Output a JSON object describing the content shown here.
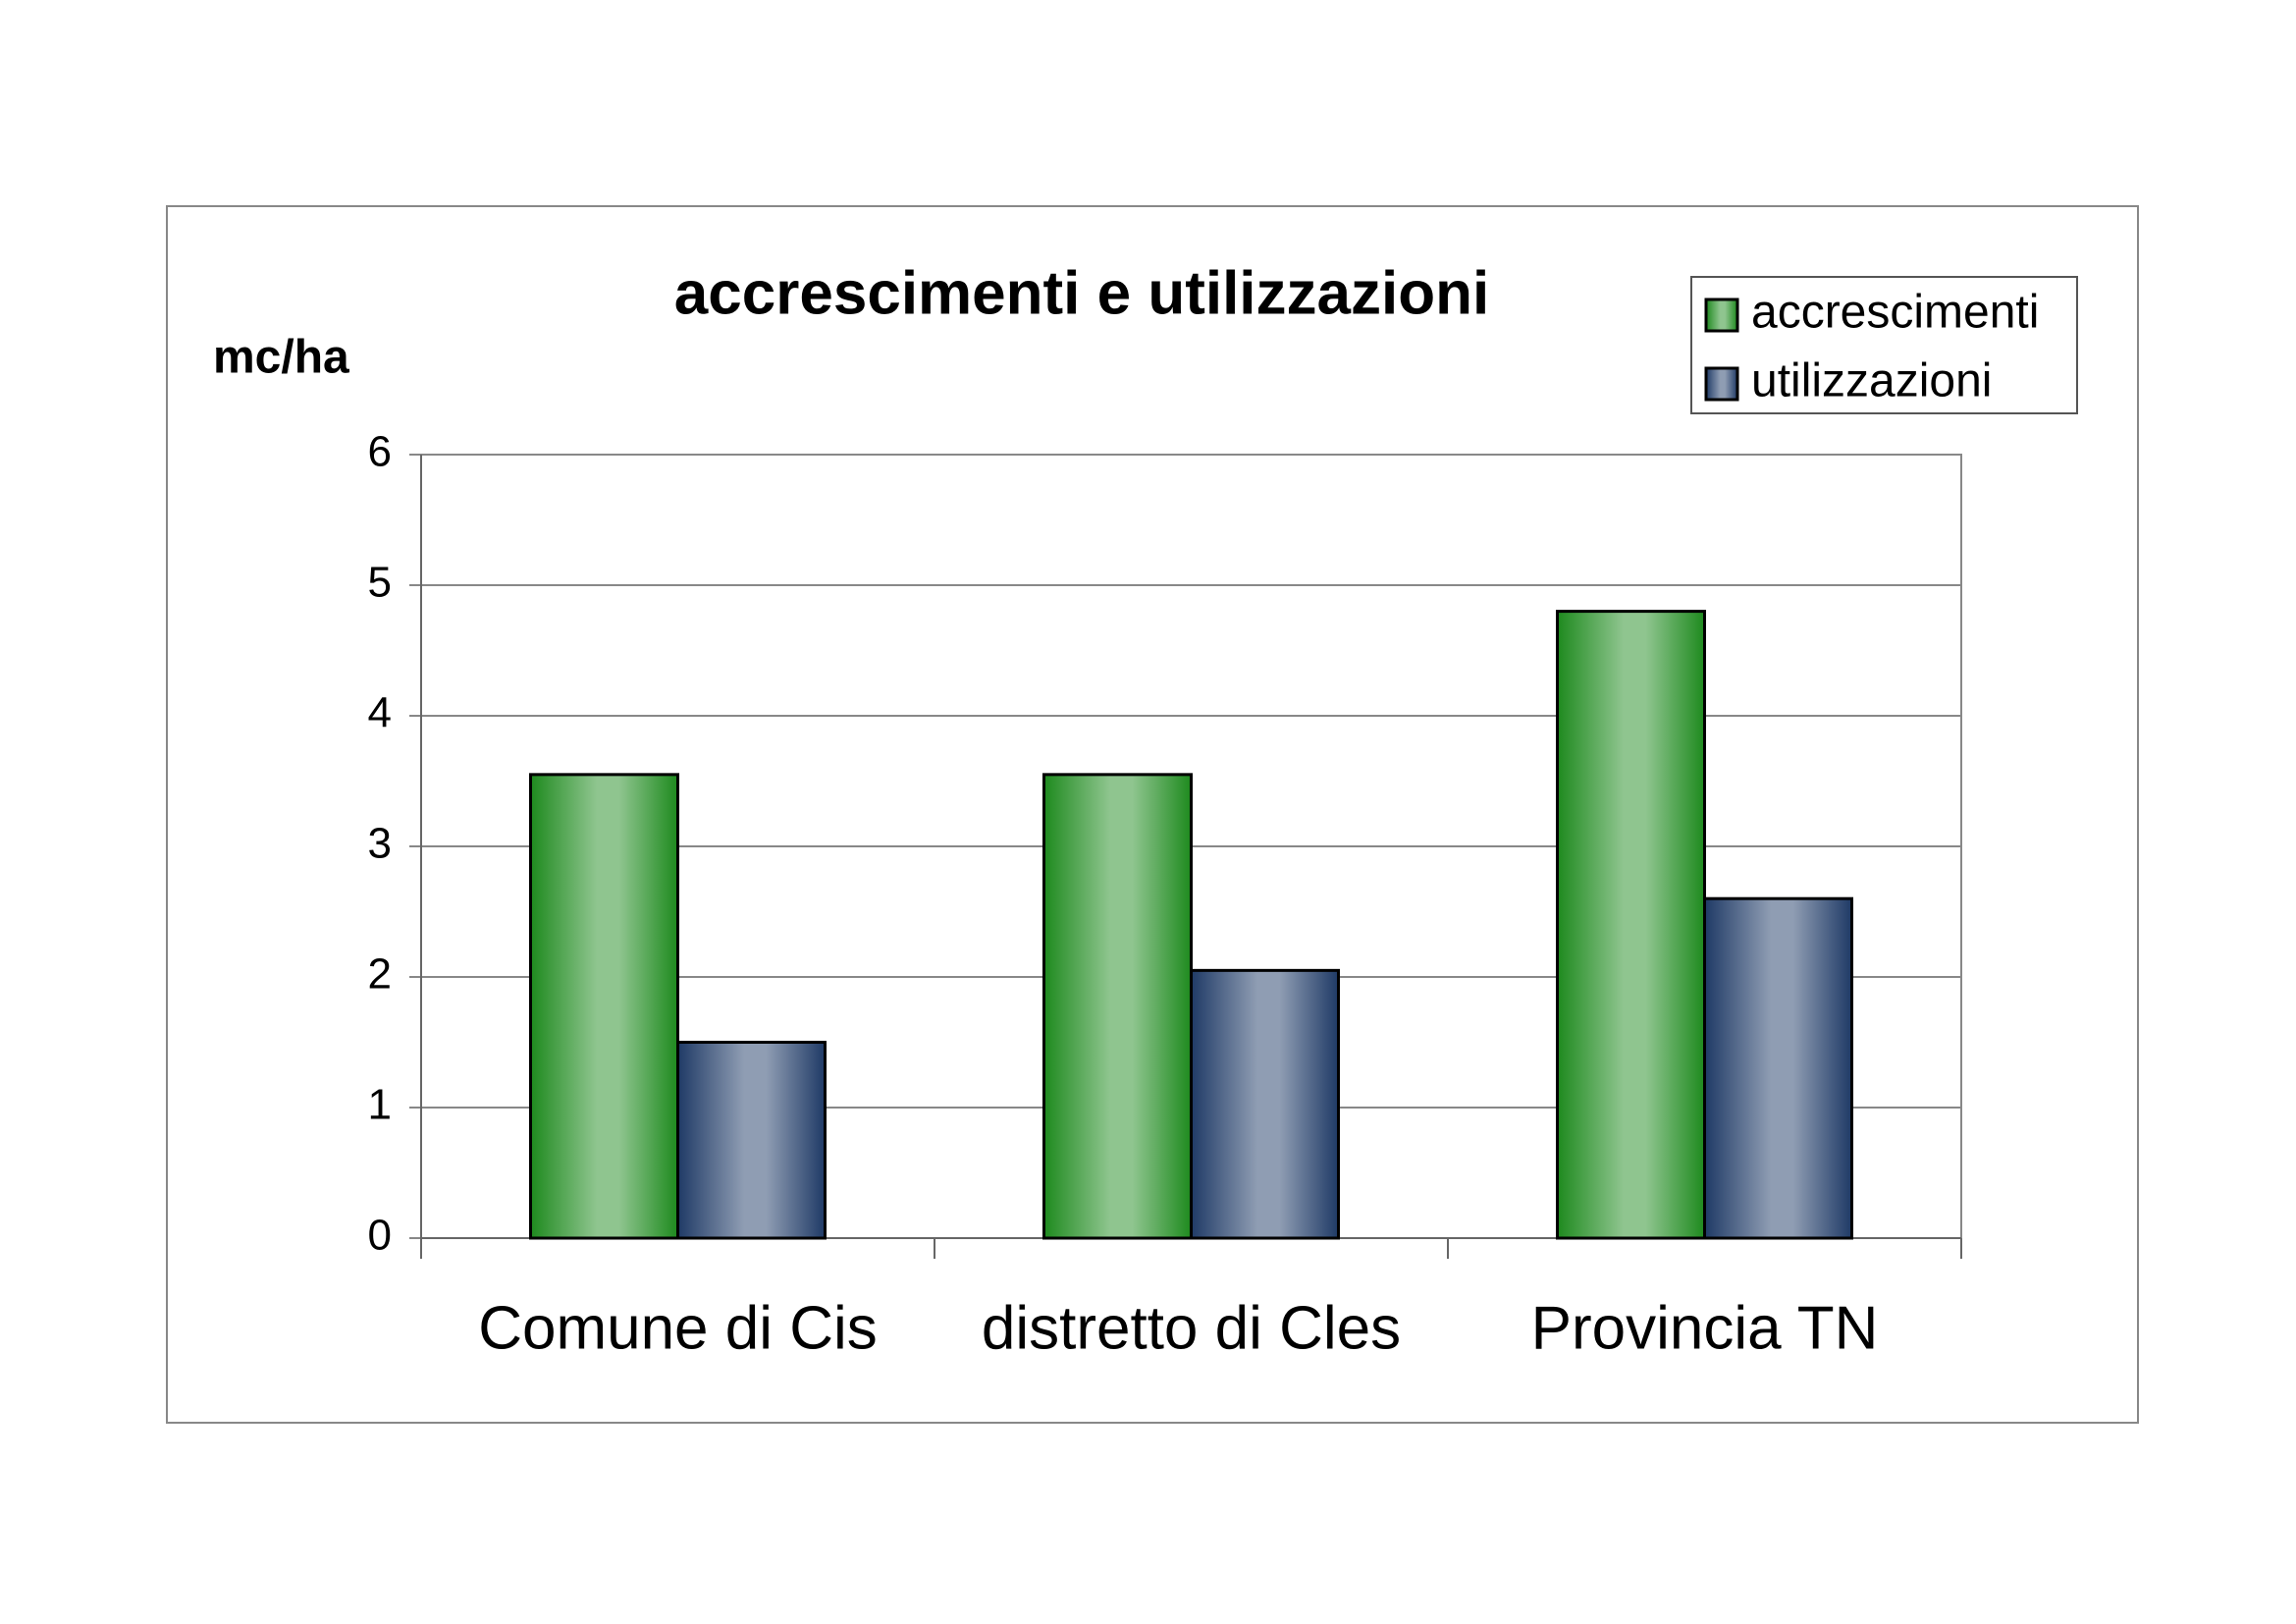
{
  "chart_data": {
    "type": "bar",
    "title": "accrescimenti e utilizzazioni",
    "y_label": "mc/ha",
    "categories": [
      "Comune di Cis",
      "distretto di Cles",
      "Provincia TN"
    ],
    "series": [
      {
        "name": "accrescimenti",
        "color": "#1e8a1e",
        "values": [
          3.55,
          3.55,
          4.8
        ]
      },
      {
        "name": "utilizzazioni",
        "color": "#1f3a66",
        "values": [
          1.5,
          2.05,
          2.6
        ]
      }
    ],
    "ylim": [
      0,
      6
    ],
    "yticks": [
      0,
      1,
      2,
      3,
      4,
      5,
      6
    ],
    "grid": true,
    "legend": "top-right"
  }
}
